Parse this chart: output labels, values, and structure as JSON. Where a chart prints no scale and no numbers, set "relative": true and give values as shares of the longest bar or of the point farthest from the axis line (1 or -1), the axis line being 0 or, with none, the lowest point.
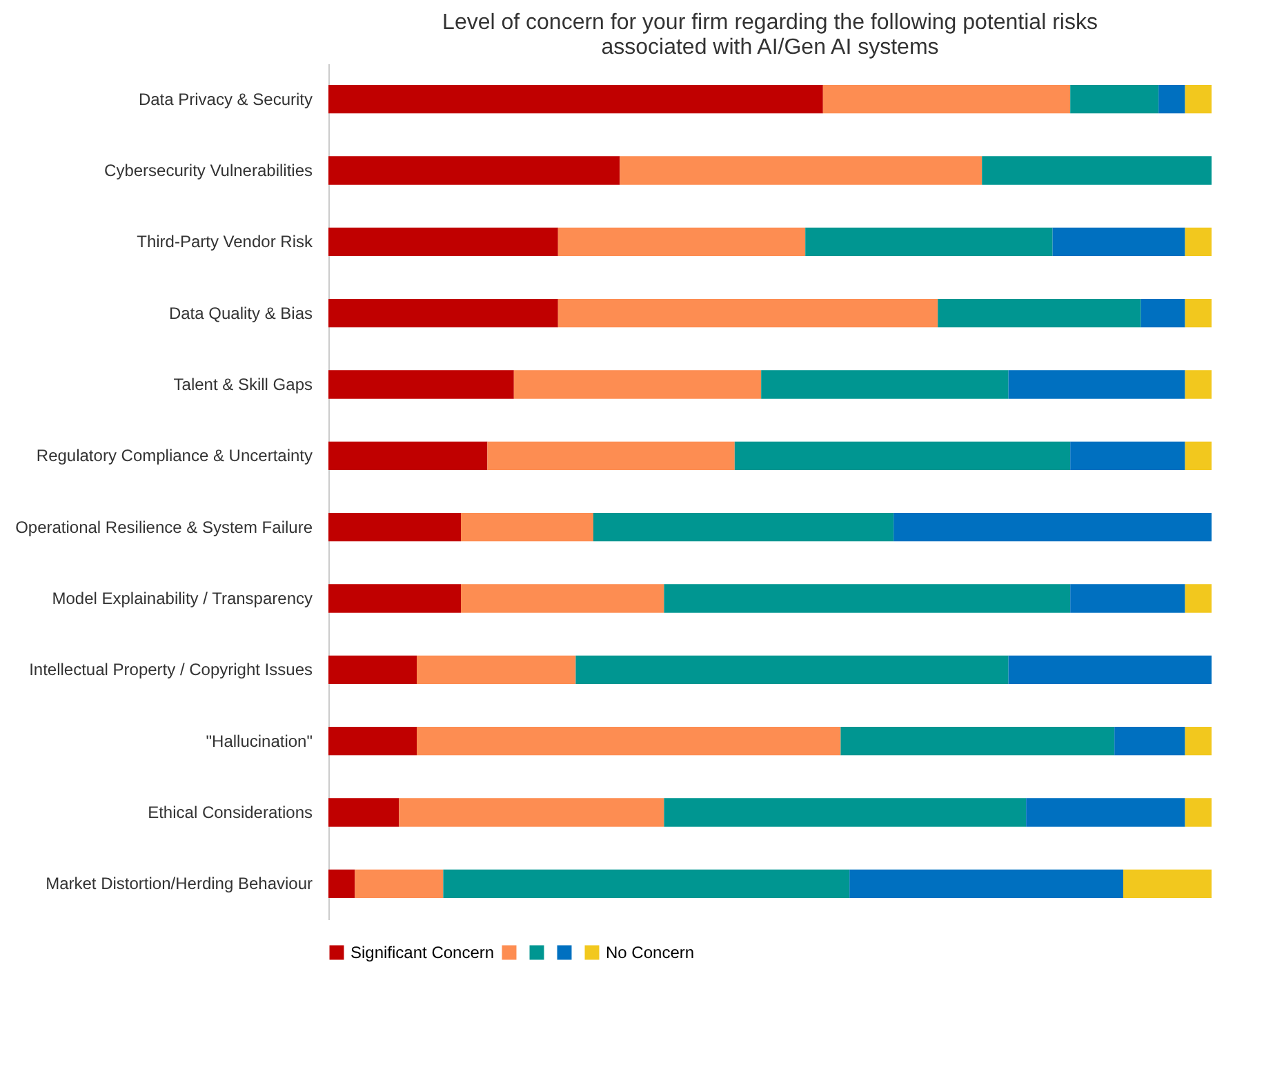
{
  "chart_data": {
    "type": "bar",
    "orientation": "horizontal",
    "stacked": true,
    "relative": true,
    "title": "Level of concern for your firm regarding the following potential risks associated with AI/Gen AI systems",
    "legend": "bottom",
    "categories": [
      "Data Privacy & Security",
      "Cybersecurity Vulnerabilities",
      "Third-Party Vendor Risk",
      "Data Quality & Bias",
      "Talent & Skill Gaps",
      "Regulatory Compliance & Uncertainty",
      "Operational Resilience & System Failure",
      "Model Explainability / Transparency",
      "Intellectual Property / Copyright Issues",
      "\"Hallucination\"",
      "Ethical Considerations",
      "Market Distortion/Herding Behaviour"
    ],
    "series": [
      {
        "name": "Significant Concern",
        "color": "#c00000",
        "values": [
          0.56,
          0.33,
          0.26,
          0.26,
          0.21,
          0.18,
          0.15,
          0.15,
          0.1,
          0.1,
          0.08,
          0.03
        ]
      },
      {
        "color": "#fd8d52",
        "values": [
          0.28,
          0.41,
          0.28,
          0.43,
          0.28,
          0.28,
          0.15,
          0.23,
          0.18,
          0.48,
          0.3,
          0.1
        ]
      },
      {
        "color": "#009691",
        "values": [
          0.1,
          0.26,
          0.28,
          0.23,
          0.28,
          0.38,
          0.34,
          0.46,
          0.49,
          0.31,
          0.41,
          0.46
        ]
      },
      {
        "color": "#0070c0",
        "values": [
          0.03,
          null,
          0.15,
          0.05,
          0.2,
          0.13,
          0.36,
          0.13,
          0.23,
          0.08,
          0.18,
          0.31
        ]
      },
      {
        "name": "No Concern",
        "color": "#f2c81e",
        "values": [
          0.03,
          null,
          0.03,
          0.03,
          0.03,
          0.03,
          null,
          0.03,
          null,
          0.03,
          0.03,
          0.1
        ]
      }
    ]
  }
}
